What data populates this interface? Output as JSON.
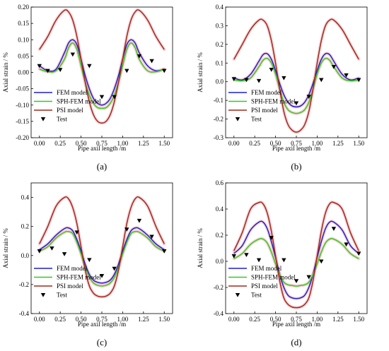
{
  "colors": {
    "fem": "#1f1fcf",
    "sph": "#33cc1a",
    "psi": "#a0281c",
    "test": "#000000",
    "band": "#f0a0a8"
  },
  "chart_data": [
    {
      "panel": "(a)",
      "type": "line",
      "xlabel": "Pipe axil length /m",
      "ylabel": "Axial strain  / %",
      "xlim": [
        -0.1,
        1.6
      ],
      "ylim": [
        -0.2,
        0.2
      ],
      "xticks": [
        "0.00",
        "0.25",
        "0.50",
        "0.75",
        "1.00",
        "1.25",
        "1.50"
      ],
      "yticks": [
        "-0.20",
        "-0.15",
        "-0.10",
        "-0.05",
        "0.00",
        "0.05",
        "0.10",
        "0.15",
        "0.20"
      ],
      "legend": [
        "FEM model",
        "SPH-FEM model",
        "PSI model",
        "Test"
      ],
      "legend_position": "bottom-left",
      "series": [
        {
          "name": "FEM model",
          "x": [
            0,
            0.1,
            0.2,
            0.3,
            0.35,
            0.4,
            0.45,
            0.5,
            0.55,
            0.6,
            0.65,
            0.7,
            0.75,
            0.8,
            0.85,
            0.9,
            0.95,
            1.0,
            1.05,
            1.1,
            1.15,
            1.2,
            1.3,
            1.4,
            1.5
          ],
          "y": [
            0.02,
            0.005,
            0.01,
            0.06,
            0.09,
            0.1,
            0.085,
            0.04,
            -0.01,
            -0.05,
            -0.08,
            -0.095,
            -0.1,
            -0.095,
            -0.08,
            -0.05,
            -0.01,
            0.04,
            0.085,
            0.1,
            0.09,
            0.06,
            0.02,
            0.005,
            0.01
          ]
        },
        {
          "name": "SPH-FEM model",
          "x": [
            0,
            0.1,
            0.2,
            0.3,
            0.35,
            0.4,
            0.45,
            0.5,
            0.55,
            0.6,
            0.65,
            0.7,
            0.75,
            0.8,
            0.85,
            0.9,
            0.95,
            1.0,
            1.05,
            1.1,
            1.15,
            1.2,
            1.3,
            1.4,
            1.5
          ],
          "y": [
            0.01,
            0.002,
            0.005,
            0.04,
            0.075,
            0.09,
            0.07,
            0.02,
            -0.03,
            -0.07,
            -0.095,
            -0.108,
            -0.11,
            -0.108,
            -0.095,
            -0.07,
            -0.03,
            0.02,
            0.07,
            0.09,
            0.075,
            0.04,
            0.005,
            0.002,
            0.01
          ]
        },
        {
          "name": "PSI model",
          "x": [
            0,
            0.1,
            0.2,
            0.3,
            0.35,
            0.4,
            0.45,
            0.5,
            0.55,
            0.6,
            0.65,
            0.7,
            0.75,
            0.8,
            0.85,
            0.9,
            0.95,
            1.0,
            1.05,
            1.1,
            1.15,
            1.2,
            1.3,
            1.4,
            1.5
          ],
          "y": [
            0.07,
            0.11,
            0.16,
            0.19,
            0.185,
            0.16,
            0.11,
            0.04,
            -0.03,
            -0.09,
            -0.13,
            -0.15,
            -0.155,
            -0.15,
            -0.13,
            -0.09,
            -0.03,
            0.04,
            0.11,
            0.16,
            0.185,
            0.19,
            0.16,
            0.11,
            0.07
          ]
        },
        {
          "name": "Test",
          "marker": "triangle-down",
          "x": [
            0,
            0.1,
            0.25,
            0.4,
            0.6,
            0.75,
            0.9,
            1.05,
            1.2,
            1.35,
            1.5
          ],
          "y": [
            0.02,
            0.005,
            0.008,
            0.055,
            0.02,
            -0.075,
            -0.075,
            0.005,
            0.05,
            0.035,
            0.005
          ]
        }
      ]
    },
    {
      "panel": "(b)",
      "type": "line",
      "xlabel": "Pipe axil length /m",
      "ylabel": "Axial strain  / %",
      "xlim": [
        -0.1,
        1.6
      ],
      "ylim": [
        -0.3,
        0.4
      ],
      "xticks": [
        "0.00",
        "0.25",
        "0.50",
        "0.75",
        "1.00",
        "1.25",
        "1.50"
      ],
      "yticks": [
        "-0.3",
        "-0.2",
        "-0.1",
        "0.0",
        "0.1",
        "0.2",
        "0.3",
        "0.4"
      ],
      "legend": [
        "FEM model",
        "SPH-FEM model",
        "PSI model",
        "Test"
      ],
      "legend_position": "bottom-left",
      "series": [
        {
          "name": "FEM model",
          "x": [
            0,
            0.1,
            0.2,
            0.3,
            0.35,
            0.4,
            0.45,
            0.5,
            0.55,
            0.6,
            0.65,
            0.7,
            0.75,
            0.8,
            0.85,
            0.9,
            0.95,
            1.0,
            1.05,
            1.1,
            1.15,
            1.2,
            1.3,
            1.4,
            1.5
          ],
          "y": [
            0.02,
            0.01,
            0.04,
            0.11,
            0.145,
            0.15,
            0.12,
            0.06,
            -0.01,
            -0.07,
            -0.11,
            -0.13,
            -0.135,
            -0.13,
            -0.11,
            -0.07,
            -0.01,
            0.06,
            0.12,
            0.15,
            0.145,
            0.11,
            0.04,
            0.01,
            0.02
          ]
        },
        {
          "name": "SPH-FEM model",
          "x": [
            0,
            0.1,
            0.2,
            0.3,
            0.35,
            0.4,
            0.45,
            0.5,
            0.55,
            0.6,
            0.65,
            0.7,
            0.75,
            0.8,
            0.85,
            0.9,
            0.95,
            1.0,
            1.05,
            1.1,
            1.15,
            1.2,
            1.3,
            1.4,
            1.5
          ],
          "y": [
            0.01,
            0.005,
            0.02,
            0.08,
            0.115,
            0.125,
            0.1,
            0.04,
            -0.04,
            -0.11,
            -0.15,
            -0.165,
            -0.17,
            -0.165,
            -0.15,
            -0.11,
            -0.04,
            0.04,
            0.1,
            0.125,
            0.115,
            0.08,
            0.02,
            0.005,
            0.01
          ]
        },
        {
          "name": "PSI model",
          "x": [
            0,
            0.1,
            0.2,
            0.3,
            0.35,
            0.4,
            0.45,
            0.5,
            0.55,
            0.6,
            0.65,
            0.7,
            0.75,
            0.8,
            0.85,
            0.9,
            0.95,
            1.0,
            1.05,
            1.1,
            1.15,
            1.2,
            1.3,
            1.4,
            1.5
          ],
          "y": [
            0.12,
            0.2,
            0.28,
            0.33,
            0.33,
            0.3,
            0.22,
            0.1,
            -0.04,
            -0.16,
            -0.23,
            -0.26,
            -0.27,
            -0.26,
            -0.23,
            -0.16,
            -0.04,
            0.1,
            0.22,
            0.3,
            0.33,
            0.33,
            0.28,
            0.2,
            0.12
          ]
        },
        {
          "name": "Test",
          "marker": "triangle-down",
          "x": [
            0,
            0.15,
            0.3,
            0.45,
            0.6,
            0.75,
            0.9,
            1.05,
            1.2,
            1.35,
            1.5
          ],
          "y": [
            0.015,
            0.01,
            0.005,
            0.065,
            0.02,
            -0.115,
            -0.08,
            0.01,
            0.08,
            0.035,
            0.01
          ]
        }
      ]
    },
    {
      "panel": "(c)",
      "type": "line",
      "xlabel": "Pipe axil length /m",
      "ylabel": "Axial strain  / %",
      "xlim": [
        -0.1,
        1.6
      ],
      "ylim": [
        -0.4,
        0.5
      ],
      "xticks": [
        "0.00",
        "0.25",
        "0.50",
        "0.75",
        "1.00",
        "1.25",
        "1.50"
      ],
      "yticks": [
        "-0.4",
        "-0.2",
        "0.0",
        "0.2",
        "0.4"
      ],
      "legend": [
        "FEM model",
        "SPH-FEM model",
        "PSI model",
        "Test"
      ],
      "legend_position": "bottom-left",
      "series": [
        {
          "name": "FEM model",
          "x": [
            0,
            0.1,
            0.2,
            0.3,
            0.35,
            0.4,
            0.45,
            0.5,
            0.55,
            0.6,
            0.65,
            0.7,
            0.75,
            0.8,
            0.85,
            0.9,
            0.95,
            1.0,
            1.05,
            1.1,
            1.15,
            1.2,
            1.3,
            1.4,
            1.5
          ],
          "y": [
            0.04,
            0.08,
            0.14,
            0.185,
            0.19,
            0.17,
            0.11,
            0.03,
            -0.06,
            -0.13,
            -0.17,
            -0.185,
            -0.19,
            -0.185,
            -0.17,
            -0.13,
            -0.06,
            0.03,
            0.11,
            0.17,
            0.19,
            0.185,
            0.14,
            0.08,
            0.04
          ]
        },
        {
          "name": "SPH-FEM model",
          "x": [
            0,
            0.1,
            0.2,
            0.3,
            0.35,
            0.4,
            0.45,
            0.5,
            0.55,
            0.6,
            0.65,
            0.7,
            0.75,
            0.8,
            0.85,
            0.9,
            0.95,
            1.0,
            1.05,
            1.1,
            1.15,
            1.2,
            1.3,
            1.4,
            1.5
          ],
          "y": [
            0.03,
            0.06,
            0.12,
            0.16,
            0.165,
            0.15,
            0.09,
            0.01,
            -0.08,
            -0.15,
            -0.19,
            -0.205,
            -0.21,
            -0.205,
            -0.19,
            -0.15,
            -0.08,
            0.01,
            0.09,
            0.15,
            0.165,
            0.16,
            0.12,
            0.06,
            0.03
          ]
        },
        {
          "name": "PSI model",
          "x": [
            0,
            0.1,
            0.2,
            0.3,
            0.35,
            0.4,
            0.45,
            0.5,
            0.55,
            0.6,
            0.65,
            0.7,
            0.75,
            0.8,
            0.85,
            0.9,
            0.95,
            1.0,
            1.05,
            1.1,
            1.15,
            1.2,
            1.3,
            1.4,
            1.5
          ],
          "y": [
            0.08,
            0.2,
            0.34,
            0.4,
            0.39,
            0.33,
            0.22,
            0.06,
            -0.1,
            -0.21,
            -0.26,
            -0.28,
            -0.285,
            -0.28,
            -0.26,
            -0.21,
            -0.1,
            0.06,
            0.22,
            0.33,
            0.39,
            0.4,
            0.34,
            0.2,
            0.08
          ]
        },
        {
          "name": "Test",
          "marker": "triangle-down",
          "x": [
            0,
            0.15,
            0.3,
            0.45,
            0.6,
            0.75,
            0.9,
            1.05,
            1.2,
            1.35,
            1.5
          ],
          "y": [
            0.03,
            0.05,
            0.01,
            0.16,
            -0.03,
            -0.14,
            -0.09,
            0.18,
            0.24,
            0.13,
            0.03
          ]
        }
      ]
    },
    {
      "panel": "(d)",
      "type": "line",
      "xlabel": "Pipe axil length /m",
      "ylabel": "Axial strain  / %",
      "xlim": [
        -0.1,
        1.6
      ],
      "ylim": [
        -0.4,
        0.6
      ],
      "xticks": [
        "0.00",
        "0.25",
        "0.50",
        "0.75",
        "1.00",
        "1.25",
        "1.50"
      ],
      "yticks": [
        "-0.4",
        "-0.2",
        "0.0",
        "0.2",
        "0.4",
        "0.6"
      ],
      "legend": [
        "FEM model",
        "SPH-FEM model",
        "PSI model",
        "Test"
      ],
      "legend_position": "bottom-left",
      "series": [
        {
          "name": "FEM model",
          "x": [
            0,
            0.1,
            0.2,
            0.3,
            0.35,
            0.4,
            0.45,
            0.5,
            0.55,
            0.6,
            0.65,
            0.7,
            0.75,
            0.8,
            0.85,
            0.9,
            0.95,
            1.0,
            1.05,
            1.1,
            1.15,
            1.2,
            1.3,
            1.4,
            1.5
          ],
          "y": [
            0.06,
            0.12,
            0.24,
            0.3,
            0.3,
            0.25,
            0.15,
            0.03,
            -0.1,
            -0.2,
            -0.26,
            -0.28,
            -0.285,
            -0.28,
            -0.26,
            -0.2,
            -0.1,
            0.03,
            0.15,
            0.25,
            0.3,
            0.3,
            0.24,
            0.12,
            0.06
          ]
        },
        {
          "name": "SPH-FEM model",
          "x": [
            0,
            0.1,
            0.2,
            0.3,
            0.35,
            0.4,
            0.45,
            0.5,
            0.55,
            0.6,
            0.65,
            0.7,
            0.75,
            0.8,
            0.85,
            0.9,
            0.95,
            1.0,
            1.05,
            1.1,
            1.15,
            1.2,
            1.3,
            1.4,
            1.5
          ],
          "y": [
            0.02,
            0.06,
            0.13,
            0.17,
            0.17,
            0.14,
            0.07,
            -0.02,
            -0.1,
            -0.16,
            -0.18,
            -0.185,
            -0.19,
            -0.185,
            -0.18,
            -0.16,
            -0.1,
            -0.02,
            0.07,
            0.14,
            0.17,
            0.17,
            0.13,
            0.06,
            0.02
          ]
        },
        {
          "name": "PSI model",
          "x": [
            0,
            0.1,
            0.2,
            0.3,
            0.35,
            0.4,
            0.45,
            0.5,
            0.55,
            0.6,
            0.65,
            0.7,
            0.75,
            0.8,
            0.85,
            0.9,
            0.95,
            1.0,
            1.05,
            1.1,
            1.15,
            1.2,
            1.3,
            1.4,
            1.5
          ],
          "y": [
            0.08,
            0.22,
            0.4,
            0.45,
            0.44,
            0.37,
            0.23,
            0.04,
            -0.15,
            -0.28,
            -0.33,
            -0.35,
            -0.355,
            -0.35,
            -0.33,
            -0.28,
            -0.15,
            0.04,
            0.23,
            0.37,
            0.44,
            0.45,
            0.4,
            0.22,
            0.08
          ]
        },
        {
          "name": "Test",
          "marker": "triangle-down",
          "x": [
            0,
            0.15,
            0.3,
            0.45,
            0.6,
            0.75,
            0.9,
            1.05,
            1.2,
            1.35,
            1.5
          ],
          "y": [
            0.04,
            0.05,
            0.01,
            0.18,
            0.01,
            -0.15,
            -0.12,
            0.0,
            0.25,
            0.13,
            0.06
          ]
        }
      ]
    }
  ]
}
